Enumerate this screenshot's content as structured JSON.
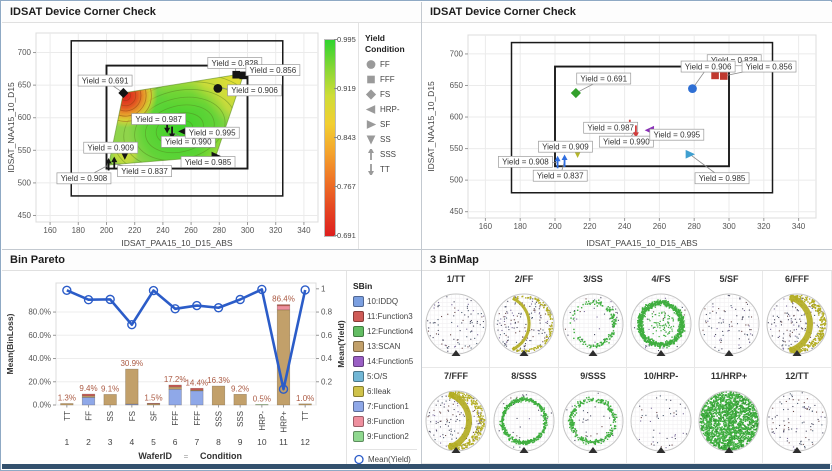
{
  "ui": {
    "yield_label_prefix": "Yield = "
  },
  "window": {
    "bottom_edge_color": "#33516e"
  },
  "chart_data": [
    {
      "id": "corner_contour",
      "type": "contour-scatter",
      "title": "IDSAT Device Corner Check",
      "xlabel": "IDSAT_PAA15_10_D15_ABS",
      "ylabel": "IDSAT_NAA15_10_D15",
      "xlim": [
        150,
        350
      ],
      "xticks": [
        160,
        180,
        200,
        220,
        240,
        260,
        280,
        300,
        320,
        340
      ],
      "ylim": [
        440,
        730
      ],
      "yticks": [
        450,
        500,
        550,
        600,
        650,
        700
      ],
      "grid": true,
      "marker_color": "#141414",
      "spec_boxes": [
        {
          "x1": 175,
          "y1": 480,
          "x2": 325,
          "y2": 718
        },
        {
          "x1": 200,
          "y1": 522,
          "x2": 300,
          "y2": 680
        }
      ],
      "points": [
        {
          "condition": "FS",
          "x": 212,
          "y": 638,
          "yield": "0.691",
          "label_at": [
            199,
            657
          ]
        },
        {
          "condition": "FFF",
          "x": 292,
          "y": 666,
          "yield": "0.828",
          "label_at": [
            291,
            684
          ]
        },
        {
          "condition": "FFF",
          "x": 297,
          "y": 665,
          "yield": "0.856",
          "label_at": [
            318,
            673
          ]
        },
        {
          "condition": "FF",
          "x": 279,
          "y": 645,
          "yield": "0.906",
          "label_at": [
            305,
            642
          ]
        },
        {
          "condition": "TT",
          "x": 243,
          "y": 587,
          "yield": "0.987",
          "label_at": [
            237,
            598
          ]
        },
        {
          "condition": "TT",
          "x": 246.5,
          "y": 578,
          "yield": "0.990",
          "label_at": [
            258,
            563
          ]
        },
        {
          "condition": "HRP-",
          "x": 254.5,
          "y": 579,
          "yield": "0.995",
          "label_at": [
            275,
            577
          ]
        },
        {
          "condition": "SS",
          "x": 213,
          "y": 543,
          "yield": "0.909",
          "label_at": [
            203,
            554
          ]
        },
        {
          "condition": "SF",
          "x": 277.5,
          "y": 541,
          "yield": "0.985",
          "label_at": [
            272,
            532
          ]
        },
        {
          "condition": "SSS",
          "x": 205.5,
          "y": 529.5,
          "yield": "0.837",
          "label_at": [
            227,
            518
          ]
        },
        {
          "condition": "SSS",
          "x": 201.5,
          "y": 527.5,
          "yield": "0.908",
          "label_at": [
            184,
            507
          ]
        }
      ],
      "contour": {
        "hull": [
          [
            212,
            638
          ],
          [
            292,
            666
          ],
          [
            297,
            665
          ],
          [
            277.5,
            541
          ],
          [
            201.5,
            527.5
          ]
        ],
        "hot_spot": [
          213.5,
          634
        ],
        "bright_center": [
          252,
          583
        ],
        "base_color": "#8fd44b"
      },
      "colorbar": {
        "ticks": [
          "0.995",
          "0.919",
          "0.843",
          "0.767",
          "0.691"
        ],
        "gradient_top_to_bottom": [
          "#2fd32f",
          "#86d735",
          "#cfdd37",
          "#f2cf31",
          "#f4a42c",
          "#ef7426",
          "#e54722",
          "#de1f1f"
        ]
      },
      "legend": {
        "title_lines": [
          "Yield",
          "Condition"
        ],
        "items": [
          "FF",
          "FFF",
          "FS",
          "HRP-",
          "SF",
          "SS",
          "SSS",
          "TT"
        ],
        "glyph_color": "#9a9a9a"
      },
      "condition_styles": {
        "FF": {
          "shape": "circle",
          "color": "#2e6fd4"
        },
        "FFF": {
          "shape": "square",
          "color": "#c0392f"
        },
        "FS": {
          "shape": "diamond",
          "color": "#33a02c"
        },
        "HRP-": {
          "shape": "tri-left",
          "color": "#8a2fb8"
        },
        "SF": {
          "shape": "tri-right",
          "color": "#3f9fd0"
        },
        "SS": {
          "shape": "tri-down",
          "color": "#b5b62a"
        },
        "SSS": {
          "shape": "arrow-up",
          "color": "#2f6ee0"
        },
        "TT": {
          "shape": "arrow-down",
          "color": "#d23b3b"
        }
      }
    },
    {
      "id": "corner_scatter",
      "type": "scatter",
      "title": "IDSAT Device Corner Check",
      "xlabel": "IDSAT_PAA15_10_D15_ABS",
      "ylabel": "IDSAT_NAA15_10_D15",
      "xlim": [
        150,
        350
      ],
      "xticks": [
        160,
        180,
        200,
        220,
        240,
        260,
        280,
        300,
        320,
        340
      ],
      "ylim": [
        440,
        730
      ],
      "yticks": [
        450,
        500,
        550,
        600,
        650,
        700
      ],
      "grid": true,
      "spec_boxes": [
        {
          "x1": 175,
          "y1": 480,
          "x2": 325,
          "y2": 718
        },
        {
          "x1": 200,
          "y1": 522,
          "x2": 300,
          "y2": 680
        }
      ],
      "points": [
        {
          "condition": "FS",
          "x": 212,
          "y": 638,
          "yield": "0.691",
          "label_at": [
            228,
            661
          ]
        },
        {
          "condition": "FFF",
          "x": 292,
          "y": 666,
          "yield": "0.828",
          "label_at": [
            303,
            690
          ]
        },
        {
          "condition": "FFF",
          "x": 297,
          "y": 665,
          "yield": "0.856",
          "label_at": [
            323,
            680
          ]
        },
        {
          "condition": "FF",
          "x": 279,
          "y": 645,
          "yield": "0.906",
          "label_at": [
            288,
            680
          ]
        },
        {
          "condition": "TT",
          "x": 243,
          "y": 587,
          "yield": "0.987",
          "label_at": [
            232,
            583
          ]
        },
        {
          "condition": "TT",
          "x": 246.5,
          "y": 578,
          "yield": "0.990",
          "label_at": [
            241,
            561
          ]
        },
        {
          "condition": "HRP-",
          "x": 254.5,
          "y": 579,
          "yield": "0.995",
          "label_at": [
            270,
            572
          ]
        },
        {
          "condition": "SS",
          "x": 213,
          "y": 543,
          "yield": "0.909",
          "label_at": [
            206,
            553
          ]
        },
        {
          "condition": "SF",
          "x": 277.5,
          "y": 541,
          "yield": "0.985",
          "label_at": [
            296,
            503
          ]
        },
        {
          "condition": "SSS",
          "x": 205.5,
          "y": 529.5,
          "yield": "0.837",
          "label_at": [
            203,
            507
          ]
        },
        {
          "condition": "SSS",
          "x": 201.5,
          "y": 527.5,
          "yield": "0.908",
          "label_at": [
            183,
            529
          ]
        }
      ]
    },
    {
      "id": "bin_pareto",
      "type": "bar+line",
      "title": "Bin Pareto",
      "categories": [
        "1",
        "2",
        "3",
        "4",
        "5",
        "6",
        "7",
        "8",
        "9",
        "10",
        "11",
        "12"
      ],
      "conditions": [
        "TT",
        "FF",
        "SS",
        "FS",
        "SF",
        "FFF",
        "FFF",
        "SSS",
        "SSS",
        "HRP-",
        "HRP+",
        "TT"
      ],
      "bar_total_labels": [
        "1.3%",
        "9.4%",
        "9.1%",
        "30.9%",
        "1.5%",
        "17.2%",
        "14.4%",
        "16.3%",
        "9.2%",
        "0.5%",
        "86.4%",
        "1.0%"
      ],
      "bars": [
        [
          {
            "bin": "13:SCAN",
            "v": 1.3
          }
        ],
        [
          {
            "bin": "7:Function1",
            "v": 6.6
          },
          {
            "bin": "13:SCAN",
            "v": 1.3
          },
          {
            "bin": "11:Function3",
            "v": 1.5
          }
        ],
        [
          {
            "bin": "13:SCAN",
            "v": 9.1
          }
        ],
        [
          {
            "bin": "7:Function1",
            "v": 0.8
          },
          {
            "bin": "13:SCAN",
            "v": 30.1
          }
        ],
        [
          {
            "bin": "13:SCAN",
            "v": 1.0
          },
          {
            "bin": "11:Function3",
            "v": 0.5
          }
        ],
        [
          {
            "bin": "7:Function1",
            "v": 13.6
          },
          {
            "bin": "13:SCAN",
            "v": 2.0
          },
          {
            "bin": "11:Function3",
            "v": 1.6
          }
        ],
        [
          {
            "bin": "7:Function1",
            "v": 12.2
          },
          {
            "bin": "13:SCAN",
            "v": 0.7
          },
          {
            "bin": "11:Function3",
            "v": 1.5
          }
        ],
        [
          {
            "bin": "13:SCAN",
            "v": 16.3
          }
        ],
        [
          {
            "bin": "13:SCAN",
            "v": 9.2
          }
        ],
        [
          {
            "bin": "9:Function2",
            "v": 0.5
          }
        ],
        [
          {
            "bin": "13:SCAN",
            "v": 81.9
          },
          {
            "bin": "8:Function",
            "v": 3.5
          },
          {
            "bin": "11:Function3",
            "v": 1.0
          }
        ],
        [
          {
            "bin": "13:SCAN",
            "v": 1.0
          }
        ]
      ],
      "yield_line": [
        0.987,
        0.906,
        0.909,
        0.691,
        0.985,
        0.828,
        0.856,
        0.837,
        0.908,
        0.995,
        0.136,
        0.99
      ],
      "ylabel_left": "Mean(BinLoss)",
      "ylabel_right": "Mean(Yield)",
      "yticks_left": [
        "0.0%",
        "20.0%",
        "40.0%",
        "60.0%",
        "80.0%"
      ],
      "yticks_left_vals": [
        0,
        20,
        40,
        60,
        80
      ],
      "yticks_right": [
        "0.2",
        "0.4",
        "0.6",
        "0.8",
        "1"
      ],
      "yticks_right_vals": [
        0.2,
        0.4,
        0.6,
        0.8,
        1
      ],
      "ymax_pct": 105,
      "xaxis_title_left": "WaferID",
      "xaxis_separator": "=",
      "xaxis_title_right": "Condition",
      "bar_label_color": "#ab5a43",
      "line_color": "#2b5cc8",
      "legend_title": "SBin",
      "sbin_legend": [
        {
          "label": "10:IDDQ",
          "color": "#7b9fe0"
        },
        {
          "label": "11:Function3",
          "color": "#cf5b57"
        },
        {
          "label": "12:Function4",
          "color": "#63bd63"
        },
        {
          "label": "13:SCAN",
          "color": "#c2a06a"
        },
        {
          "label": "14:Function5",
          "color": "#9a5fc4"
        },
        {
          "label": "5:O/S",
          "color": "#72b7d6"
        },
        {
          "label": "6:Ileak",
          "color": "#cfc24a"
        },
        {
          "label": "7:Function1",
          "color": "#8fa8e8"
        },
        {
          "label": "8:Function",
          "color": "#ee8f9e"
        },
        {
          "label": "9:Function2",
          "color": "#8fd88f"
        }
      ],
      "mean_yield_legend_label": "Mean(Yield)"
    },
    {
      "id": "binmap",
      "type": "wafer-maps",
      "title": "3 BinMap",
      "colors": {
        "green": "#3fae3f",
        "olive": "#b3ad23",
        "dot": "#4a4a60"
      },
      "wafers": [
        {
          "label": "1/TT",
          "pattern": "sparse",
          "n": 90
        },
        {
          "label": "2/FF",
          "pattern": "sparse",
          "n": 150,
          "crescent": "thin"
        },
        {
          "label": "3/SS",
          "pattern": "ring",
          "n": 260,
          "bias": "right"
        },
        {
          "label": "4/FS",
          "pattern": "ring",
          "n": 850,
          "thick": true
        },
        {
          "label": "5/SF",
          "pattern": "sparse",
          "n": 80
        },
        {
          "label": "6/FFF",
          "pattern": "sparse",
          "n": 140,
          "crescent": "thick"
        },
        {
          "label": "7/FFF",
          "pattern": "sparse",
          "n": 140,
          "crescent": "thick"
        },
        {
          "label": "8/SSS",
          "pattern": "ring",
          "n": 480
        },
        {
          "label": "9/SSS",
          "pattern": "ring",
          "n": 300
        },
        {
          "label": "10/HRP-",
          "pattern": "sparse",
          "n": 45
        },
        {
          "label": "11/HRP+",
          "pattern": "solid",
          "n": 1600
        },
        {
          "label": "12/TT",
          "pattern": "sparse",
          "n": 90
        }
      ]
    }
  ]
}
